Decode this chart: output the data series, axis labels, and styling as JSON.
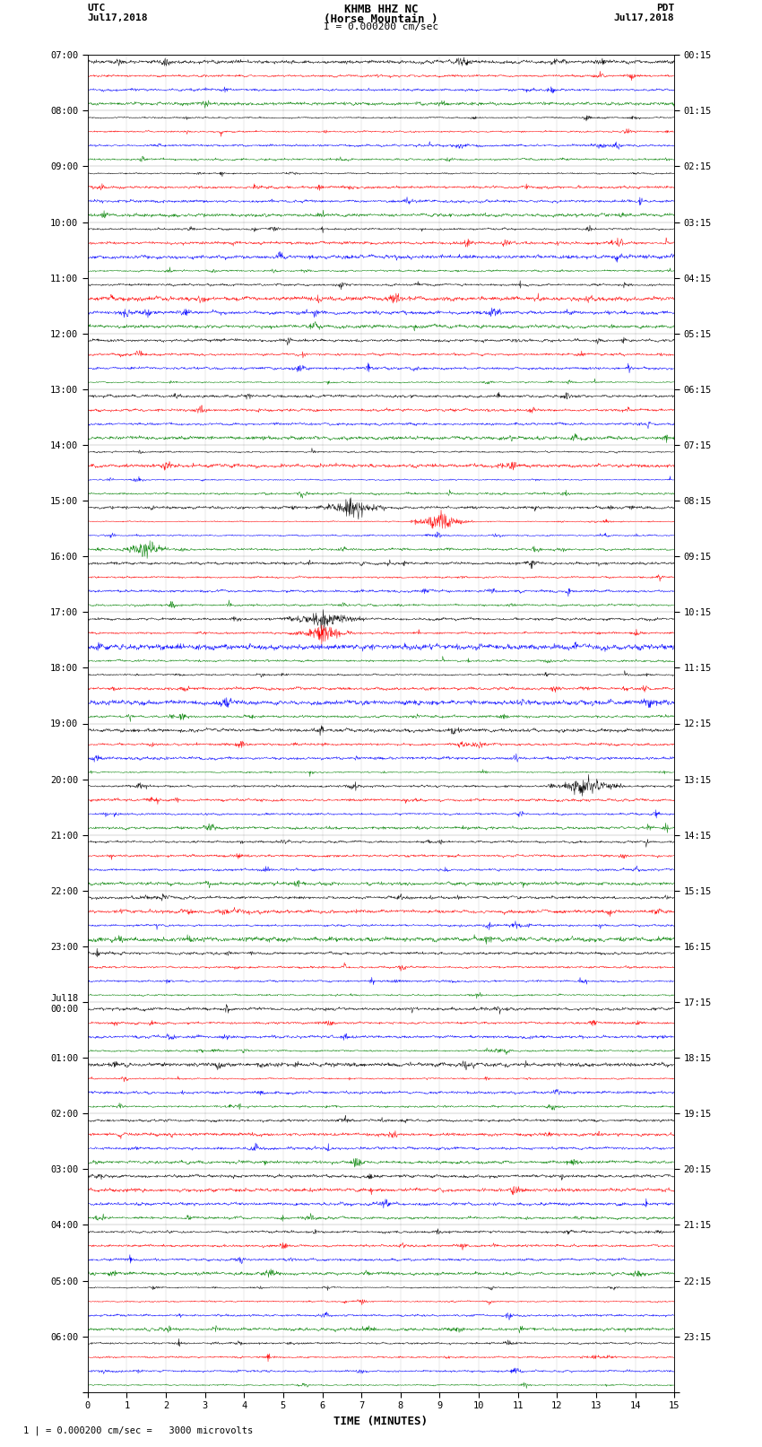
{
  "title_line1": "KHMB HHZ NC",
  "title_line2": "(Horse Mountain )",
  "title_line3": "I = 0.000200 cm/sec",
  "left_header_line1": "UTC",
  "left_header_line2": "Jul17,2018",
  "right_header_line1": "PDT",
  "right_header_line2": "Jul17,2018",
  "xlabel": "TIME (MINUTES)",
  "bottom_note": "1 | = 0.000200 cm/sec =   3000 microvolts",
  "hour_labels_utc": [
    "07:00",
    "08:00",
    "09:00",
    "10:00",
    "11:00",
    "12:00",
    "13:00",
    "14:00",
    "15:00",
    "16:00",
    "17:00",
    "18:00",
    "19:00",
    "20:00",
    "21:00",
    "22:00",
    "23:00",
    "Jul18\n00:00",
    "01:00",
    "02:00",
    "03:00",
    "04:00",
    "05:00",
    "06:00"
  ],
  "hour_labels_pdt": [
    "00:15",
    "01:15",
    "02:15",
    "03:15",
    "04:15",
    "05:15",
    "06:15",
    "07:15",
    "08:15",
    "09:15",
    "10:15",
    "11:15",
    "12:15",
    "13:15",
    "14:15",
    "15:15",
    "16:15",
    "17:15",
    "18:15",
    "19:15",
    "20:15",
    "21:15",
    "22:15",
    "23:15"
  ],
  "trace_colors": [
    "black",
    "red",
    "blue",
    "green"
  ],
  "n_hours": 24,
  "traces_per_hour": 4,
  "n_minutes": 15,
  "bg_color": "white",
  "seed": 12345,
  "pts_per_minute": 100
}
